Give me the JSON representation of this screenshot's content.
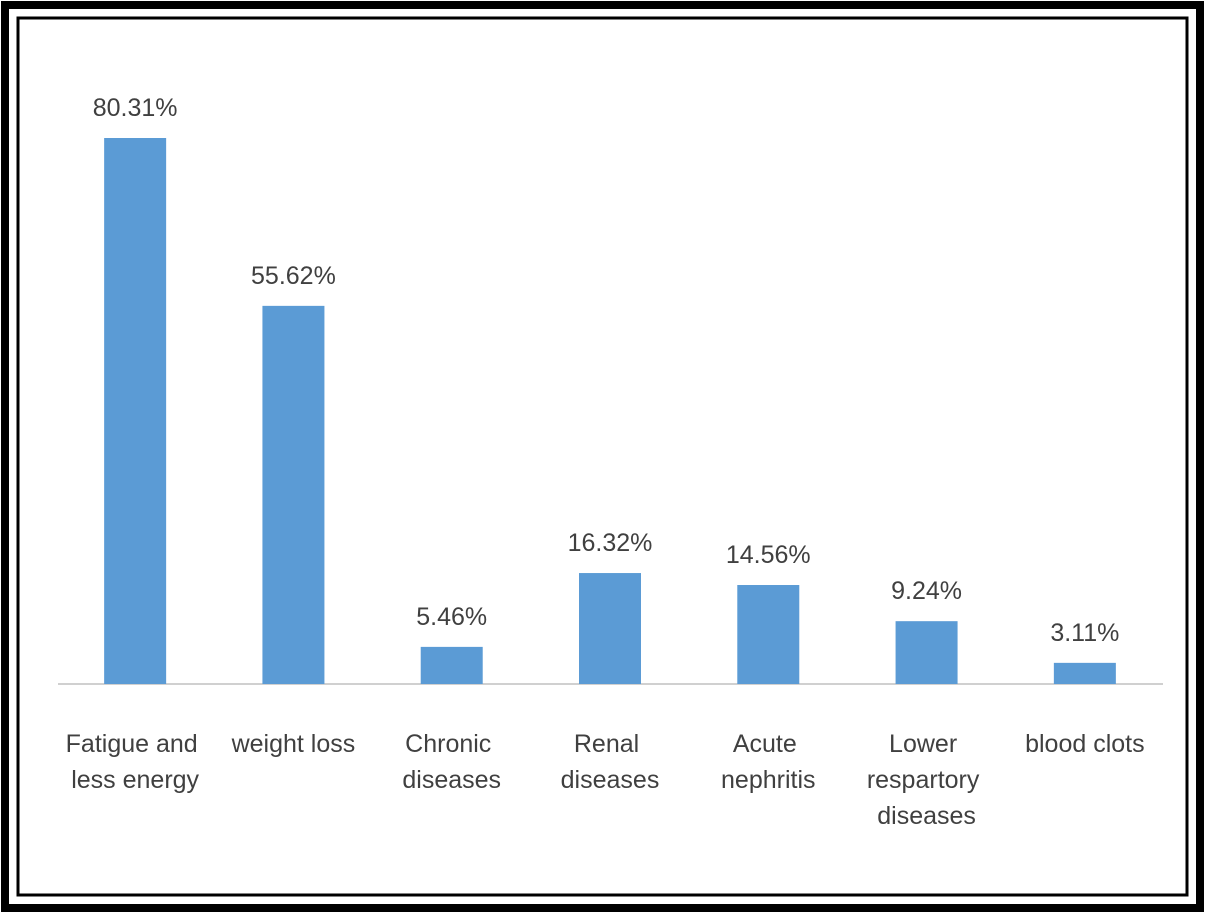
{
  "chart_data": {
    "type": "bar",
    "categories": [
      "Fatigue and less energy",
      "weight loss",
      "Chronic diseases",
      "Renal diseases",
      "Acute nephritis",
      "Lower respartory diseases",
      "blood clots"
    ],
    "values": [
      80.31,
      55.62,
      5.46,
      16.32,
      14.56,
      9.24,
      3.11
    ],
    "value_labels": [
      "80.31%",
      "55.62%",
      "5.46%",
      "16.32%",
      "14.56%",
      "9.24%",
      "3.11%"
    ],
    "color": "#5b9bd5"
  }
}
